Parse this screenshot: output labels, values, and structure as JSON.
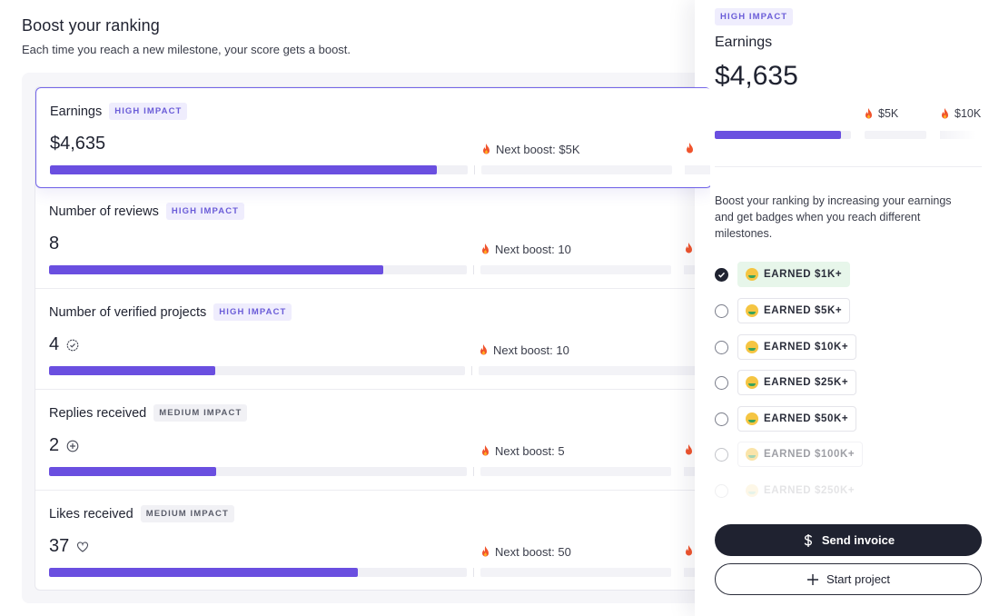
{
  "header": {
    "title": "Boost your ranking",
    "subtitle": "Each time you reach a new milestone, your score gets a boost."
  },
  "metrics": [
    {
      "name": "Earnings",
      "impact": "HIGH IMPACT",
      "impact_level": "high",
      "value": "$4,635",
      "value_icon": "",
      "next_boost": "Next boost: $5K",
      "progress": 0.926
    },
    {
      "name": "Number of reviews",
      "impact": "HIGH IMPACT",
      "impact_level": "high",
      "value": "8",
      "value_icon": "",
      "next_boost": "Next boost: 10",
      "progress": 0.8
    },
    {
      "name": "Number of verified projects",
      "impact": "HIGH IMPACT",
      "impact_level": "high",
      "value": "4",
      "value_icon": "check-badge-icon",
      "next_boost": "Next boost: 10",
      "progress": 0.4
    },
    {
      "name": "Replies received",
      "impact": "MEDIUM IMPACT",
      "impact_level": "medium",
      "value": "2",
      "value_icon": "plus-badge-icon",
      "next_boost": "Next boost: 5",
      "progress": 0.4
    },
    {
      "name": "Likes received",
      "impact": "MEDIUM IMPACT",
      "impact_level": "medium",
      "value": "37",
      "value_icon": "heart-icon",
      "next_boost": "Next boost: 50",
      "progress": 0.74
    }
  ],
  "side_panel": {
    "badge": "HIGH IMPACT",
    "title": "Earnings",
    "amount": "$4,635",
    "milestone_labels": [
      "$5K",
      "$10K"
    ],
    "progress": 0.926,
    "description": "Boost your ranking by increasing your earnings and get badges when you reach different milestones.",
    "milestones": [
      {
        "label": "EARNED $1K+",
        "checked": true
      },
      {
        "label": "EARNED $5K+",
        "checked": false
      },
      {
        "label": "EARNED $10K+",
        "checked": false
      },
      {
        "label": "EARNED $25K+",
        "checked": false
      },
      {
        "label": "EARNED $50K+",
        "checked": false
      },
      {
        "label": "EARNED $100K+",
        "checked": false
      },
      {
        "label": "EARNED $250K+",
        "checked": false
      }
    ],
    "send_invoice": "Send invoice",
    "start_project": "Start project"
  },
  "colors": {
    "accent": "#6a4fe0",
    "earned_chip": "#e7f6ea",
    "primary_button": "#1f2230"
  }
}
